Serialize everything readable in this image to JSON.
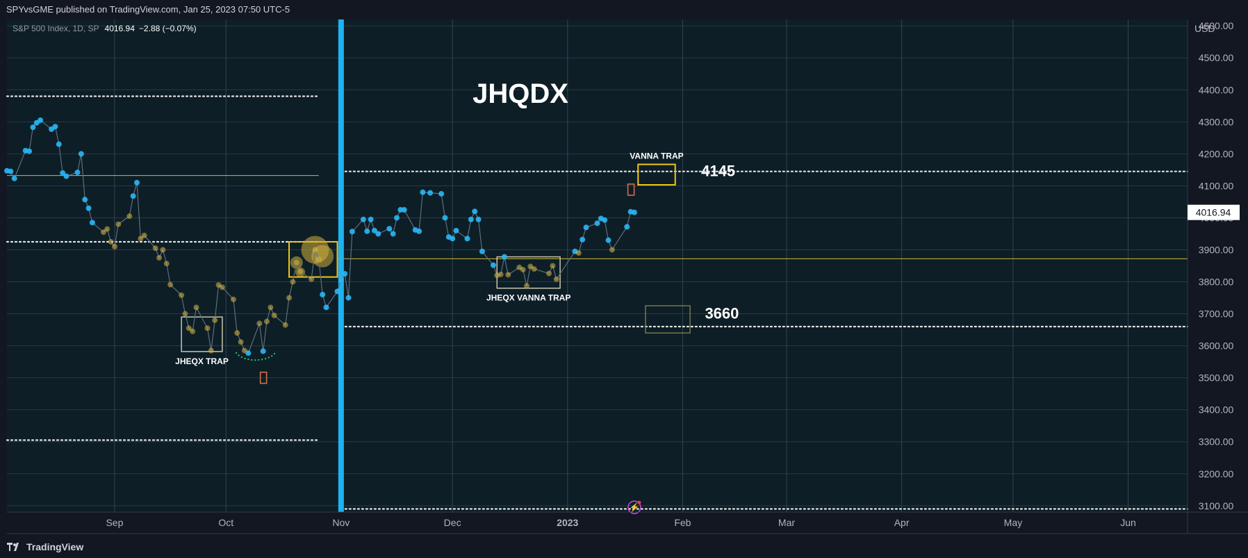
{
  "header": {
    "publisher_line": "SPYvsGME published on TradingView.com, Jan 25, 2023 07:50 UTC-5"
  },
  "legend": {
    "symbol": "S&P 500 Index, 1D, SP",
    "last_price": "4016.94",
    "change": "−2.88 (−0.07%)"
  },
  "footer": {
    "brand": "TradingView"
  },
  "colors": {
    "background": "#0d1e27",
    "grid": "#2a3a45",
    "line": "#5d6f7a",
    "cyan": "#29b6f6",
    "gold": "#d8b646",
    "yellow_box": "#f2c618",
    "vertical_bar": "#1eb3ef",
    "dotted": "#e6e6e6"
  },
  "chart_data": {
    "type": "line",
    "title": "JHQDX",
    "price_axis": {
      "currency": "USD",
      "ticks": [
        "4600.00",
        "4500.00",
        "4400.00",
        "4300.00",
        "4200.00",
        "4100.00",
        "4000.00",
        "3900.00",
        "3800.00",
        "3700.00",
        "3600.00",
        "3500.00",
        "3400.00",
        "3300.00",
        "3200.00",
        "3100.00"
      ],
      "tick_values": [
        4600,
        4500,
        4400,
        4300,
        4200,
        4100,
        4000,
        3900,
        3800,
        3700,
        3600,
        3500,
        3400,
        3300,
        3200,
        3100
      ],
      "ylim": [
        3080,
        4620
      ],
      "current_price_label": "4016.94"
    },
    "time_axis": {
      "ticks": [
        "Sep",
        "Oct",
        "Nov",
        "Dec",
        "2023",
        "Feb",
        "Mar",
        "Apr",
        "May",
        "Jun"
      ],
      "tick_dates": [
        "2022-09-01",
        "2022-10-01",
        "2022-11-01",
        "2022-12-01",
        "2023-01-01",
        "2023-02-01",
        "2023-03-01",
        "2023-04-01",
        "2023-05-01",
        "2023-06-01"
      ],
      "xlim": [
        "2022-08-03",
        "2023-06-17"
      ]
    },
    "series": [
      {
        "values": [
          [
            "2022-08-03",
            4147,
            "c"
          ],
          [
            "2022-08-04",
            4145,
            "c"
          ],
          [
            "2022-08-05",
            4123,
            "c"
          ],
          [
            "2022-08-08",
            4210,
            "c"
          ],
          [
            "2022-08-09",
            4208,
            "c"
          ],
          [
            "2022-08-10",
            4283,
            "c"
          ],
          [
            "2022-08-11",
            4297,
            "c"
          ],
          [
            "2022-08-12",
            4305,
            "c"
          ],
          [
            "2022-08-15",
            4277,
            "c"
          ],
          [
            "2022-08-16",
            4285,
            "c"
          ],
          [
            "2022-08-17",
            4230,
            "c"
          ],
          [
            "2022-08-18",
            4140,
            "c"
          ],
          [
            "2022-08-19",
            4130,
            "c"
          ],
          [
            "2022-08-22",
            4142,
            "c"
          ],
          [
            "2022-08-23",
            4200,
            "c"
          ],
          [
            "2022-08-24",
            4057,
            "c"
          ],
          [
            "2022-08-25",
            4030,
            "c"
          ],
          [
            "2022-08-26",
            3985,
            "c"
          ],
          [
            "2022-08-29",
            3955,
            "g"
          ],
          [
            "2022-08-30",
            3965,
            "g"
          ],
          [
            "2022-08-31",
            3925,
            "g"
          ],
          [
            "2022-09-01",
            3910,
            "g"
          ],
          [
            "2022-09-02",
            3980,
            "g"
          ],
          [
            "2022-09-05",
            4005,
            "g"
          ],
          [
            "2022-09-06",
            4068,
            "c"
          ],
          [
            "2022-09-07",
            4110,
            "c"
          ],
          [
            "2022-09-08",
            3935,
            "g"
          ],
          [
            "2022-09-09",
            3945,
            "g"
          ],
          [
            "2022-09-12",
            3905,
            "g"
          ],
          [
            "2022-09-13",
            3875,
            "g"
          ],
          [
            "2022-09-14",
            3900,
            "g"
          ],
          [
            "2022-09-15",
            3857,
            "g"
          ],
          [
            "2022-09-16",
            3791,
            "g"
          ],
          [
            "2022-09-19",
            3758,
            "g"
          ],
          [
            "2022-09-20",
            3700,
            "g"
          ],
          [
            "2022-09-21",
            3655,
            "g"
          ],
          [
            "2022-09-22",
            3645,
            "g"
          ],
          [
            "2022-09-23",
            3720,
            "g"
          ],
          [
            "2022-09-26",
            3655,
            "g"
          ],
          [
            "2022-09-27",
            3585,
            "g"
          ],
          [
            "2022-09-28",
            3680,
            "g"
          ],
          [
            "2022-09-29",
            3790,
            "g"
          ],
          [
            "2022-09-30",
            3783,
            "g"
          ],
          [
            "2022-10-03",
            3745,
            "g"
          ],
          [
            "2022-10-04",
            3640,
            "g"
          ],
          [
            "2022-10-05",
            3612,
            "g"
          ],
          [
            "2022-10-06",
            3585,
            "g"
          ],
          [
            "2022-10-07",
            3577,
            "c"
          ],
          [
            "2022-10-10",
            3670,
            "g"
          ],
          [
            "2022-10-11",
            3583,
            "c"
          ],
          [
            "2022-10-12",
            3676,
            "g"
          ],
          [
            "2022-10-13",
            3720,
            "g"
          ],
          [
            "2022-10-14",
            3695,
            "g"
          ],
          [
            "2022-10-17",
            3665,
            "g"
          ],
          [
            "2022-10-18",
            3750,
            "g"
          ],
          [
            "2022-10-19",
            3800,
            "g"
          ],
          [
            "2022-10-20",
            3860,
            "g"
          ],
          [
            "2022-10-21",
            3832,
            "g"
          ],
          [
            "2022-10-24",
            3808,
            "g"
          ],
          [
            "2022-10-25",
            3900,
            "g"
          ],
          [
            "2022-10-26",
            3870,
            "g"
          ],
          [
            "2022-10-27",
            3760,
            "c"
          ],
          [
            "2022-10-28",
            3720,
            "c"
          ],
          [
            "2022-10-31",
            3770,
            "c"
          ],
          [
            "2022-11-01",
            3806,
            "c"
          ],
          [
            "2022-11-02",
            3825,
            "c"
          ],
          [
            "2022-11-03",
            3750,
            "c"
          ],
          [
            "2022-11-04",
            3957,
            "c"
          ],
          [
            "2022-11-07",
            3995,
            "c"
          ],
          [
            "2022-11-08",
            3958,
            "c"
          ],
          [
            "2022-11-09",
            3995,
            "c"
          ],
          [
            "2022-11-10",
            3960,
            "c"
          ],
          [
            "2022-11-11",
            3950,
            "c"
          ],
          [
            "2022-11-14",
            3966,
            "c"
          ],
          [
            "2022-11-15",
            3950,
            "c"
          ],
          [
            "2022-11-16",
            4000,
            "c"
          ],
          [
            "2022-11-17",
            4025,
            "c"
          ],
          [
            "2022-11-18",
            4025,
            "c"
          ],
          [
            "2022-11-21",
            3962,
            "c"
          ],
          [
            "2022-11-22",
            3958,
            "c"
          ],
          [
            "2022-11-23",
            4080,
            "c"
          ],
          [
            "2022-11-25",
            4078,
            "c"
          ],
          [
            "2022-11-28",
            4075,
            "c"
          ],
          [
            "2022-11-29",
            4000,
            "c"
          ],
          [
            "2022-11-30",
            3940,
            "c"
          ],
          [
            "2022-12-01",
            3935,
            "c"
          ],
          [
            "2022-12-02",
            3960,
            "c"
          ],
          [
            "2022-12-05",
            3935,
            "c"
          ],
          [
            "2022-12-06",
            3995,
            "c"
          ],
          [
            "2022-12-07",
            4020,
            "c"
          ],
          [
            "2022-12-08",
            3995,
            "c"
          ],
          [
            "2022-12-09",
            3895,
            "c"
          ],
          [
            "2022-12-12",
            3852,
            "c"
          ],
          [
            "2022-12-13",
            3820,
            "g"
          ],
          [
            "2022-12-14",
            3823,
            "g"
          ],
          [
            "2022-12-15",
            3878,
            "c"
          ],
          [
            "2022-12-16",
            3822,
            "g"
          ],
          [
            "2022-12-19",
            3845,
            "g"
          ],
          [
            "2022-12-20",
            3838,
            "g"
          ],
          [
            "2022-12-21",
            3787,
            "g"
          ],
          [
            "2022-12-22",
            3848,
            "g"
          ],
          [
            "2022-12-23",
            3840,
            "g"
          ],
          [
            "2022-12-27",
            3826,
            "g"
          ],
          [
            "2022-12-28",
            3850,
            "g"
          ],
          [
            "2022-12-29",
            3808,
            "g"
          ],
          [
            "2023-01-03",
            3895,
            "c"
          ],
          [
            "2023-01-04",
            3890,
            "g"
          ],
          [
            "2023-01-05",
            3932,
            "c"
          ],
          [
            "2023-01-06",
            3970,
            "c"
          ],
          [
            "2023-01-09",
            3983,
            "c"
          ],
          [
            "2023-01-10",
            3998,
            "c"
          ],
          [
            "2023-01-11",
            3993,
            "c"
          ],
          [
            "2023-01-12",
            3930,
            "c"
          ],
          [
            "2023-01-13",
            3900,
            "g"
          ],
          [
            "2023-01-17",
            3972,
            "c"
          ],
          [
            "2023-01-18",
            4019,
            "c"
          ],
          [
            "2023-01-19",
            4017,
            "c"
          ]
        ]
      }
    ],
    "horizontal_dotted_levels": [
      {
        "price": 4380,
        "from": "2022-08-03",
        "to": "2022-10-26"
      },
      {
        "price": 4145,
        "from": "2022-11-01",
        "to": "2023-06-17"
      },
      {
        "price": 3925,
        "from": "2022-08-03",
        "to": "2022-10-26"
      },
      {
        "price": 3660,
        "from": "2022-11-01",
        "to": "2023-06-17"
      },
      {
        "price": 3305,
        "from": "2022-08-03",
        "to": "2022-10-26"
      },
      {
        "price": 3090,
        "from": "2022-11-01",
        "to": "2023-06-17"
      }
    ],
    "horizontal_solid_levels": [
      {
        "price": 4132,
        "from": "2022-08-03",
        "to": "2022-10-26"
      },
      {
        "price": 3872,
        "from": "2022-10-31",
        "to": "2023-06-17"
      }
    ],
    "vertical_marker_date": "2022-11-01",
    "boxes": [
      {
        "label": "JHEQX TRAP",
        "from": "2022-09-19",
        "to": "2022-09-30",
        "top": 3690,
        "bottom": 3582,
        "color": "#c9c6ae"
      },
      {
        "label": "",
        "from": "2022-10-18",
        "to": "2022-10-31",
        "top": 3925,
        "bottom": 3815,
        "color": "#f2c618"
      },
      {
        "label": "JHEQX VANNA TRAP",
        "from": "2022-12-13",
        "to": "2022-12-30",
        "top": 3878,
        "bottom": 3780,
        "color": "#c9c6ae"
      },
      {
        "label": "VANNA TRAP",
        "from": "2023-01-20",
        "to": "2023-01-30",
        "top": 4167,
        "bottom": 4103,
        "color": "#f2c618"
      },
      {
        "label": "",
        "from": "2023-01-22",
        "to": "2023-02-03",
        "top": 3725,
        "bottom": 3640,
        "color": "#7a7645"
      }
    ],
    "price_annotations": [
      {
        "text": "4145",
        "date": "2023-02-06",
        "price": 4145
      },
      {
        "text": "3660",
        "date": "2023-02-07",
        "price": 3700
      }
    ]
  }
}
